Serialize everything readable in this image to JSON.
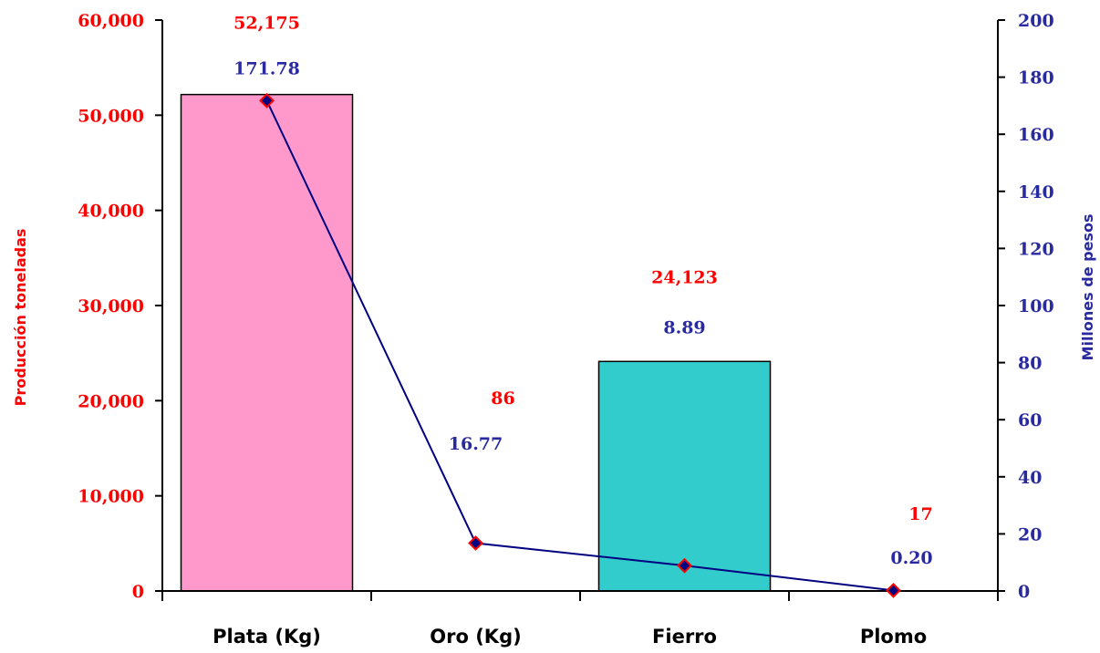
{
  "chart_data": {
    "type": "bar",
    "categories": [
      "Plata (Kg)",
      "Oro (Kg)",
      "Fierro",
      "Plomo"
    ],
    "series": [
      {
        "values": [
          52175,
          86,
          24123,
          17
        ],
        "value_labels": [
          "52,175",
          "86",
          "24,123",
          "17"
        ],
        "axis": "left",
        "kind": "bar",
        "colors": [
          "#ff99cc",
          null,
          "#33cccc",
          null
        ]
      },
      {
        "values": [
          171.78,
          16.77,
          8.89,
          0.2
        ],
        "value_labels": [
          "171.78",
          "16.77",
          "8.89",
          "0.20"
        ],
        "axis": "right",
        "kind": "line",
        "color": "#000080",
        "marker_color": "#ff0000"
      }
    ],
    "ylabel": "Producción toneladas",
    "y2label": "Millones de pesos",
    "ylim": [
      0,
      60000
    ],
    "y2lim": [
      0,
      200
    ],
    "yticks": [
      "0",
      "10,000",
      "20,000",
      "30,000",
      "40,000",
      "50,000",
      "60,000"
    ],
    "y2ticks": [
      "0",
      "20",
      "40",
      "60",
      "80",
      "100",
      "120",
      "140",
      "160",
      "180",
      "200"
    ],
    "grid": false,
    "colors": {
      "left_axis_text": "#ff0000",
      "right_axis_text": "#2a2aa0",
      "bar_label": "#ff0000",
      "line_label": "#2a2aa0"
    }
  }
}
